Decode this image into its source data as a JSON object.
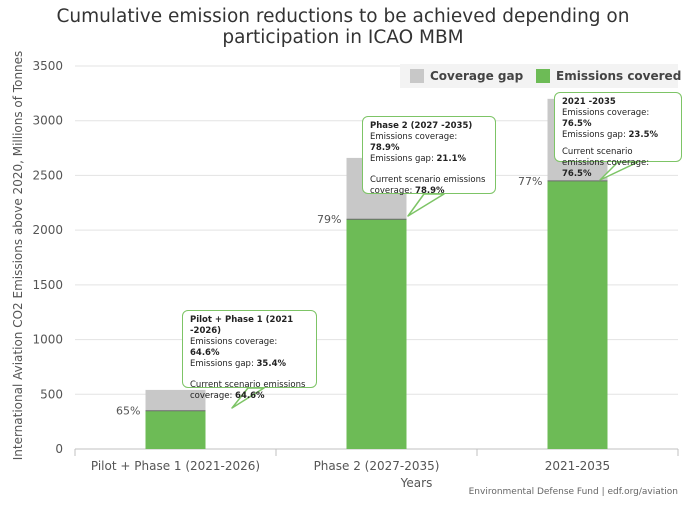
{
  "chart_data": {
    "type": "bar",
    "stacked": true,
    "title": "Cumulative emission reductions to be achieved depending on participation in ICAO MBM",
    "title_lines": [
      "Cumulative emission reductions to be achieved depending on",
      "participation in ICAO MBM"
    ],
    "xlabel": "Years",
    "ylabel": "International Aviation CO2 Emissions above 2020, Millions of Tonnes",
    "ylim": [
      0,
      3500
    ],
    "yticks": [
      0,
      500,
      1000,
      1500,
      2000,
      2500,
      3000,
      3500
    ],
    "grid": true,
    "legend_position": "top-right",
    "categories": [
      "Pilot + Phase 1 (2021-2026)",
      "Phase 2 (2027-2035)",
      "2021-2035"
    ],
    "series": [
      {
        "name": "Emissions covered",
        "color": "#6dbb56",
        "values": [
          350,
          2100,
          2450
        ]
      },
      {
        "name": "Coverage gap",
        "color": "#c8c8c8",
        "values": [
          190,
          560,
          750
        ]
      }
    ],
    "bar_labels": [
      "65%",
      "79%",
      "77%"
    ],
    "legend_order": [
      "Coverage gap",
      "Emissions covered"
    ],
    "credit": "Environmental Defense Fund | edf.org/aviation"
  },
  "tooltips": [
    {
      "title": "Pilot + Phase 1 (2021 -2026)",
      "coverage_label": "Emissions coverage: ",
      "coverage_value": "64.6%",
      "gap_label": "Emissions gap: ",
      "gap_value": "35.4%",
      "scenario_label": "Current scenario emissions coverage: ",
      "scenario_value": "64.6%"
    },
    {
      "title": "Phase 2 (2027 -2035)",
      "coverage_label": "Emissions coverage: ",
      "coverage_value": "78.9%",
      "gap_label": "Emissions gap: ",
      "gap_value": "21.1%",
      "scenario_label": "Current scenario emissions coverage: ",
      "scenario_value": "78.9%"
    },
    {
      "title": "2021 -2035",
      "coverage_label": "Emissions coverage: ",
      "coverage_value": "76.5%",
      "gap_label": "Emissions gap: ",
      "gap_value": "23.5%",
      "scenario_label": "Current scenario emissions coverage: ",
      "scenario_value": "76.5%"
    }
  ]
}
